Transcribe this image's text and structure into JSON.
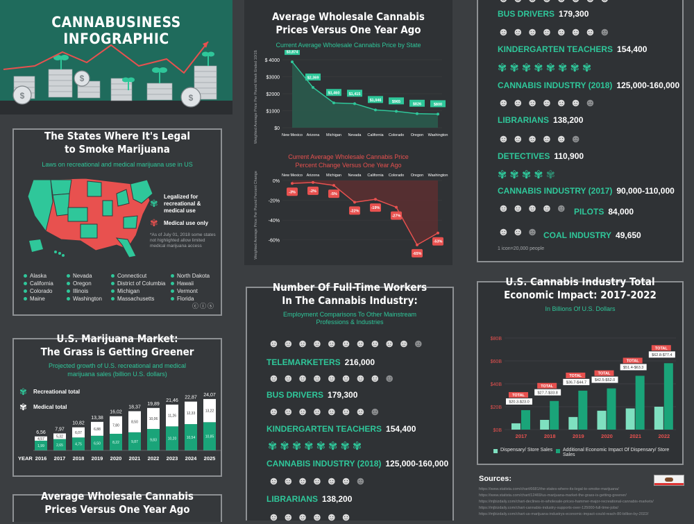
{
  "header": {
    "title": "CANNABUSINESS INFOGRAPHIC"
  },
  "legal_states": {
    "title_line1": "The States Where It's Legal",
    "title_line2": "to Smoke Marijuana",
    "subtitle": "Laws on recreational and medical marijuana use in US",
    "legend_rec": "Legalized for recreational & medical use",
    "legend_med": "Medical use only",
    "footnote": "*As of July 01, 2018 some states not highlighted allow limited medical marijuana access",
    "states_col1": [
      "Alaska",
      "California",
      "Colorado",
      "Maine"
    ],
    "states_col2": [
      "Nevada",
      "Oregon",
      "Illinois",
      "Washington"
    ],
    "states_col3": [
      "Connecticut",
      "District of Columbia",
      "Michigan",
      "Massachusetts"
    ],
    "states_col4": [
      "North Dakota",
      "Hawaii",
      "Vermont",
      "Florida"
    ],
    "colors": {
      "recreational": "#2fc79a",
      "medical": "#e8514f"
    }
  },
  "market": {
    "title_line1": "U.S. Marijuana Market:",
    "title_line2": "The Grass is Getting Greener",
    "subtitle": "Projected growth of U.S. recreational and medical marijuana sales (billion U.S. dollars)",
    "legend_rec": "Recreational total",
    "legend_med": "Medical total",
    "year_label": "YEAR"
  },
  "wholesale": {
    "title_line1": "Average Wholesale Cannabis",
    "title_line2": "Prices Versus One Year Ago",
    "chart1_title": "Current Average Wholesale Cannabis Price by State",
    "chart1_ylabel": "Weighted Average Price Per Pound Week Ended 10/19/18",
    "chart2_title_line1": "Current Average Wholesale Cannabis Price",
    "chart2_title_line2": "Percent Change Versus One Year Ago",
    "chart2_ylabel": "Weighted Average Price Per Pound Percent Change"
  },
  "workers_right": {
    "items": [
      {
        "label": "BUS DRIVERS",
        "value": "179,300"
      },
      {
        "label": "KINDERGARTEN TEACHERS",
        "value": "154,400"
      },
      {
        "label": "CANNABIS INDUSTRY (2018)",
        "value": "125,000-160,000"
      },
      {
        "label": "LIBRARIANS",
        "value": "138,200"
      },
      {
        "label": "DETECTIVES",
        "value": "110,900"
      },
      {
        "label": "CANNABIS INDUSTRY (2017)",
        "value": "90,000-110,000"
      },
      {
        "label": "PILOTS",
        "value": "84,000"
      },
      {
        "label": "COAL INDUSTRY",
        "value": "49,650"
      }
    ],
    "footnote": "1 icon=20,000 people"
  },
  "workers_mid": {
    "title_line1": "Number Of Full-Time Workers",
    "title_line2": "In The Cannabis Industry:",
    "subtitle_line1": "Employment Comparisons To Other Mainstream",
    "subtitle_line2": "Professions & Industries",
    "items": [
      {
        "label": "TELEMARKETERS",
        "value": "216,000"
      },
      {
        "label": "BUS DRIVERS",
        "value": "179,300"
      },
      {
        "label": "KINDERGARTEN TEACHERS",
        "value": "154,400"
      },
      {
        "label": "CANNABIS INDUSTRY (2018)",
        "value": "125,000-160,000"
      },
      {
        "label": "LIBRARIANS",
        "value": "138,200"
      }
    ]
  },
  "impact": {
    "title_line1": "U.S. Cannabis Industry Total",
    "title_line2": "Economic Impact: 2017-2022",
    "subtitle": "In Billions Of U.S. Dollars",
    "legend_a": "Dispensary/ Store Sales",
    "legend_b": "Additional Economic Impact Of Dispensary/ Store Sales",
    "total_label": "TOTAL"
  },
  "bottom_left": {
    "title_line1": "Average Wholesale Cannabis",
    "title_line2": "Prices Versus One Year Ago"
  },
  "sources": {
    "title": "Sources:",
    "lines": [
      "https://www.statista.com/chart/6681/the-states-where-its-legal-to-smoke-marijuana/",
      "https://www.statista.com/chart/12469/us-marijuana-market-the-grass-is-getting-greener/",
      "https://mjbizdaily.com/chart-declines-in-wholesale-prices-hammer-major-recreational-cannabis-markets/",
      "https://mjbizdaily.com/chart-cannabis-industry-supports-over-125000-full-time-jobs/",
      "https://mjbizdaily.com/chart-us-marijuana-industrys-economic-impact-could-reach-80-billion-by-2022/"
    ]
  },
  "chart_data": [
    {
      "type": "bar",
      "title": "U.S. Marijuana Market: The Grass is Getting Greener",
      "categories": [
        "2016",
        "2017",
        "2018",
        "2019",
        "2020",
        "2021",
        "2022",
        "2023",
        "2024",
        "2025"
      ],
      "series": [
        {
          "name": "Medical total",
          "values": [
            4.57,
            5.32,
            6.07,
            6.88,
            7.8,
            8.5,
            10.06,
            11.26,
            12.33,
            13.22
          ]
        },
        {
          "name": "Recreational total",
          "values": [
            1.99,
            2.65,
            4.75,
            6.5,
            8.22,
            9.87,
            9.83,
            10.2,
            10.54,
            10.85
          ]
        }
      ],
      "totals": [
        "6,56",
        "7,97",
        "10,82",
        "13,38",
        "16,02",
        "18,37",
        "19,89",
        "21,46",
        "22,87",
        "24,07"
      ],
      "medical_labels": [
        "4,57",
        "5,32",
        "6,07",
        "6,88",
        "7,80",
        "8,50",
        "10,06",
        "11,26",
        "12,33",
        "13,22"
      ],
      "recreational_labels": [
        "1,99",
        "2,65",
        "4,75",
        "6,50",
        "8,22",
        "9,87",
        "9,83",
        "10,20",
        "10,54",
        "10,85"
      ]
    },
    {
      "type": "area",
      "title": "Current Average Wholesale Cannabis Price by State",
      "categories": [
        "New Mexico",
        "Arizona",
        "Michigan",
        "Nevada",
        "California",
        "Colorado",
        "Oregon",
        "Washington"
      ],
      "values": [
        3874,
        2369,
        1460,
        1415,
        1046,
        965,
        826,
        800
      ],
      "labels": [
        "$3,874",
        "$2,369",
        "$1,460",
        "$1,415",
        "$1,046",
        "$965",
        "$826",
        "$800"
      ],
      "ylim": [
        0,
        4000
      ],
      "yticks": [
        "$0",
        "$1000",
        "$2000",
        "$3000",
        "$ 4000"
      ]
    },
    {
      "type": "area",
      "title": "Current Average Wholesale Cannabis Price Percent Change Versus One Year Ago",
      "categories": [
        "New Mexico",
        "Arizona",
        "Michigan",
        "Nevada",
        "California",
        "Colorado",
        "Oregon",
        "Washington"
      ],
      "values": [
        -3,
        -2,
        -5,
        -22,
        -19,
        -27,
        -65,
        -53
      ],
      "labels": [
        "-3%",
        "-2%",
        "-5%",
        "-22%",
        "-19%",
        "-27%",
        "-65%",
        "-53%"
      ],
      "ylim": [
        -70,
        0
      ],
      "yticks": [
        "0%",
        "-20%",
        "-40%",
        "-60%"
      ]
    },
    {
      "type": "bar",
      "title": "U.S. Cannabis Industry Total Economic Impact: 2017-2022",
      "categories": [
        "2017",
        "2018",
        "2019",
        "2020",
        "2021",
        "2022"
      ],
      "series": [
        {
          "name": "Dispensary/ Store Sales",
          "values": [
            5.5,
            8.5,
            11,
            16.5,
            18.5,
            20
          ]
        },
        {
          "name": "Additional Economic Impact Of Dispensary/ Store Sales",
          "values": [
            17,
            25,
            34,
            36,
            47,
            58
          ]
        }
      ],
      "total_ranges": [
        "$20.3-$23.0",
        "$27.7-$33.8",
        "$36.7-$44.7",
        "$42.5-$52.0",
        "$51.4-$63.3",
        "$62.8-$77.4"
      ],
      "yticks": [
        "$0B",
        "$20B",
        "$40B",
        "$60B",
        "$80B"
      ],
      "ylim": [
        0,
        80
      ]
    }
  ]
}
